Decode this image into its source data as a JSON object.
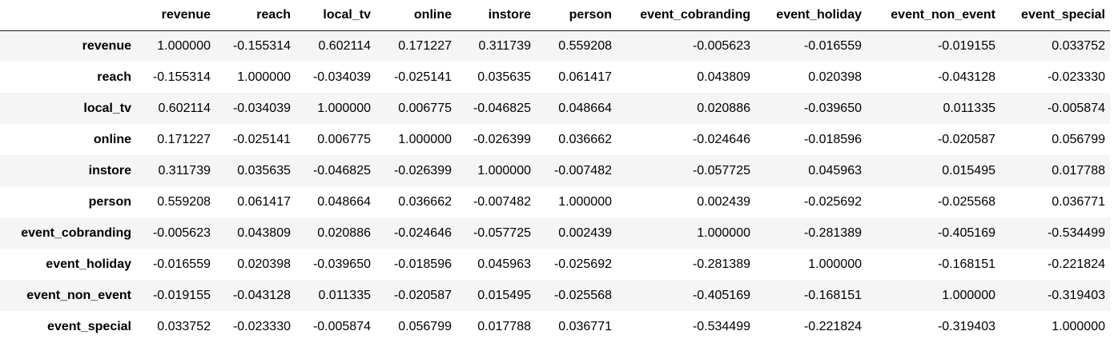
{
  "table": {
    "corner": "",
    "columns": [
      "revenue",
      "reach",
      "local_tv",
      "online",
      "instore",
      "person",
      "event_cobranding",
      "event_holiday",
      "event_non_event",
      "event_special"
    ],
    "rows": [
      {
        "label": "revenue",
        "values": [
          "1.000000",
          "-0.155314",
          "0.602114",
          "0.171227",
          "0.311739",
          "0.559208",
          "-0.005623",
          "-0.016559",
          "-0.019155",
          "0.033752"
        ]
      },
      {
        "label": "reach",
        "values": [
          "-0.155314",
          "1.000000",
          "-0.034039",
          "-0.025141",
          "0.035635",
          "0.061417",
          "0.043809",
          "0.020398",
          "-0.043128",
          "-0.023330"
        ]
      },
      {
        "label": "local_tv",
        "values": [
          "0.602114",
          "-0.034039",
          "1.000000",
          "0.006775",
          "-0.046825",
          "0.048664",
          "0.020886",
          "-0.039650",
          "0.011335",
          "-0.005874"
        ]
      },
      {
        "label": "online",
        "values": [
          "0.171227",
          "-0.025141",
          "0.006775",
          "1.000000",
          "-0.026399",
          "0.036662",
          "-0.024646",
          "-0.018596",
          "-0.020587",
          "0.056799"
        ]
      },
      {
        "label": "instore",
        "values": [
          "0.311739",
          "0.035635",
          "-0.046825",
          "-0.026399",
          "1.000000",
          "-0.007482",
          "-0.057725",
          "0.045963",
          "0.015495",
          "0.017788"
        ]
      },
      {
        "label": "person",
        "values": [
          "0.559208",
          "0.061417",
          "0.048664",
          "0.036662",
          "-0.007482",
          "1.000000",
          "0.002439",
          "-0.025692",
          "-0.025568",
          "0.036771"
        ]
      },
      {
        "label": "event_cobranding",
        "values": [
          "-0.005623",
          "0.043809",
          "0.020886",
          "-0.024646",
          "-0.057725",
          "0.002439",
          "1.000000",
          "-0.281389",
          "-0.405169",
          "-0.534499"
        ]
      },
      {
        "label": "event_holiday",
        "values": [
          "-0.016559",
          "0.020398",
          "-0.039650",
          "-0.018596",
          "0.045963",
          "-0.025692",
          "-0.281389",
          "1.000000",
          "-0.168151",
          "-0.221824"
        ]
      },
      {
        "label": "event_non_event",
        "values": [
          "-0.019155",
          "-0.043128",
          "0.011335",
          "-0.020587",
          "0.015495",
          "-0.025568",
          "-0.405169",
          "-0.168151",
          "1.000000",
          "-0.319403"
        ]
      },
      {
        "label": "event_special",
        "values": [
          "0.033752",
          "-0.023330",
          "-0.005874",
          "0.056799",
          "0.017788",
          "0.036771",
          "-0.534499",
          "-0.221824",
          "-0.319403",
          "1.000000"
        ]
      }
    ]
  },
  "colors": {
    "stripe": "#f5f5f5",
    "background": "#ffffff",
    "header_rule": "#222222",
    "text": "#000000"
  }
}
